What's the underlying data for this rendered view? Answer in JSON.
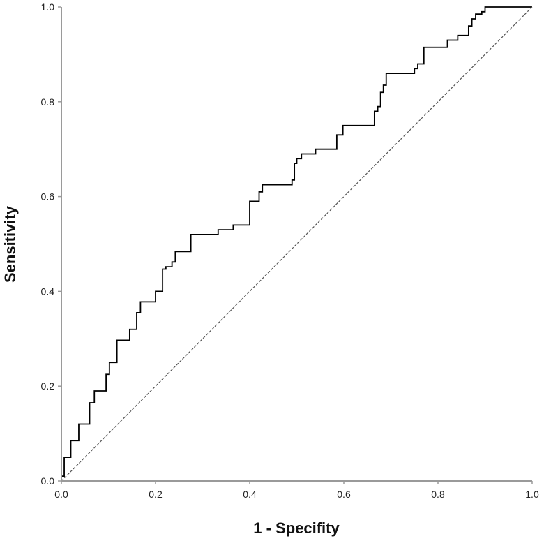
{
  "chart_data": {
    "type": "line",
    "title": "",
    "xlabel": "1 - Specifity",
    "ylabel": "Sensitivity",
    "xlim": [
      0,
      1
    ],
    "ylim": [
      0,
      1
    ],
    "x_ticks": [
      "0.0",
      "0.2",
      "0.4",
      "0.6",
      "0.8",
      "1.0"
    ],
    "y_ticks": [
      "0.0",
      "0.2",
      "0.4",
      "0.6",
      "0.8",
      "1.0"
    ],
    "grid": false,
    "legend": "none",
    "series": [
      {
        "color": "#000000",
        "style": "step",
        "points": [
          [
            0.0,
            0.0
          ],
          [
            0.0,
            0.01
          ],
          [
            0.006,
            0.01
          ],
          [
            0.006,
            0.05
          ],
          [
            0.02,
            0.05
          ],
          [
            0.02,
            0.085
          ],
          [
            0.037,
            0.085
          ],
          [
            0.037,
            0.12
          ],
          [
            0.06,
            0.12
          ],
          [
            0.06,
            0.165
          ],
          [
            0.07,
            0.165
          ],
          [
            0.07,
            0.19
          ],
          [
            0.095,
            0.19
          ],
          [
            0.095,
            0.225
          ],
          [
            0.102,
            0.225
          ],
          [
            0.102,
            0.25
          ],
          [
            0.118,
            0.25
          ],
          [
            0.118,
            0.297
          ],
          [
            0.145,
            0.297
          ],
          [
            0.145,
            0.32
          ],
          [
            0.16,
            0.32
          ],
          [
            0.16,
            0.355
          ],
          [
            0.168,
            0.355
          ],
          [
            0.168,
            0.378
          ],
          [
            0.2,
            0.378
          ],
          [
            0.2,
            0.4
          ],
          [
            0.215,
            0.4
          ],
          [
            0.215,
            0.447
          ],
          [
            0.222,
            0.447
          ],
          [
            0.222,
            0.452
          ],
          [
            0.235,
            0.452
          ],
          [
            0.235,
            0.462
          ],
          [
            0.242,
            0.462
          ],
          [
            0.242,
            0.484
          ],
          [
            0.275,
            0.484
          ],
          [
            0.275,
            0.52
          ],
          [
            0.333,
            0.52
          ],
          [
            0.333,
            0.53
          ],
          [
            0.365,
            0.53
          ],
          [
            0.365,
            0.54
          ],
          [
            0.4,
            0.54
          ],
          [
            0.4,
            0.59
          ],
          [
            0.42,
            0.59
          ],
          [
            0.42,
            0.61
          ],
          [
            0.427,
            0.61
          ],
          [
            0.427,
            0.625
          ],
          [
            0.49,
            0.625
          ],
          [
            0.49,
            0.635
          ],
          [
            0.495,
            0.635
          ],
          [
            0.495,
            0.67
          ],
          [
            0.5,
            0.67
          ],
          [
            0.5,
            0.68
          ],
          [
            0.51,
            0.68
          ],
          [
            0.51,
            0.69
          ],
          [
            0.54,
            0.69
          ],
          [
            0.54,
            0.7
          ],
          [
            0.585,
            0.7
          ],
          [
            0.585,
            0.73
          ],
          [
            0.598,
            0.73
          ],
          [
            0.598,
            0.75
          ],
          [
            0.665,
            0.75
          ],
          [
            0.665,
            0.78
          ],
          [
            0.672,
            0.78
          ],
          [
            0.672,
            0.79
          ],
          [
            0.678,
            0.79
          ],
          [
            0.678,
            0.82
          ],
          [
            0.684,
            0.82
          ],
          [
            0.684,
            0.835
          ],
          [
            0.69,
            0.835
          ],
          [
            0.69,
            0.86
          ],
          [
            0.75,
            0.86
          ],
          [
            0.75,
            0.87
          ],
          [
            0.757,
            0.87
          ],
          [
            0.757,
            0.88
          ],
          [
            0.77,
            0.88
          ],
          [
            0.77,
            0.915
          ],
          [
            0.82,
            0.915
          ],
          [
            0.82,
            0.93
          ],
          [
            0.842,
            0.93
          ],
          [
            0.842,
            0.94
          ],
          [
            0.865,
            0.94
          ],
          [
            0.865,
            0.96
          ],
          [
            0.872,
            0.96
          ],
          [
            0.872,
            0.975
          ],
          [
            0.88,
            0.975
          ],
          [
            0.88,
            0.985
          ],
          [
            0.893,
            0.985
          ],
          [
            0.893,
            0.99
          ],
          [
            0.9,
            0.99
          ],
          [
            0.9,
            1.0
          ],
          [
            1.0,
            1.0
          ]
        ]
      },
      {
        "color": "#555555",
        "style": "dashed",
        "points": [
          [
            0,
            0
          ],
          [
            1,
            1
          ]
        ]
      }
    ]
  }
}
